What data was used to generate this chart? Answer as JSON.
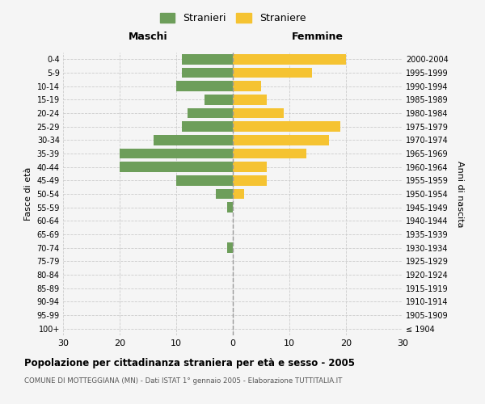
{
  "age_groups": [
    "100+",
    "95-99",
    "90-94",
    "85-89",
    "80-84",
    "75-79",
    "70-74",
    "65-69",
    "60-64",
    "55-59",
    "50-54",
    "45-49",
    "40-44",
    "35-39",
    "30-34",
    "25-29",
    "20-24",
    "15-19",
    "10-14",
    "5-9",
    "0-4"
  ],
  "birth_years": [
    "≤ 1904",
    "1905-1909",
    "1910-1914",
    "1915-1919",
    "1920-1924",
    "1925-1929",
    "1930-1934",
    "1935-1939",
    "1940-1944",
    "1945-1949",
    "1950-1954",
    "1955-1959",
    "1960-1964",
    "1965-1969",
    "1970-1974",
    "1975-1979",
    "1980-1984",
    "1985-1989",
    "1990-1994",
    "1995-1999",
    "2000-2004"
  ],
  "maschi": [
    0,
    0,
    0,
    0,
    0,
    0,
    1,
    0,
    0,
    1,
    3,
    10,
    20,
    20,
    14,
    9,
    8,
    5,
    10,
    9,
    9
  ],
  "femmine": [
    0,
    0,
    0,
    0,
    0,
    0,
    0,
    0,
    0,
    0,
    2,
    6,
    6,
    13,
    17,
    19,
    9,
    6,
    5,
    14,
    20
  ],
  "color_maschi": "#6d9e5a",
  "color_femmine": "#f5c332",
  "title": "Popolazione per cittadinanza straniera per età e sesso - 2005",
  "subtitle": "COMUNE DI MOTTEGGIANA (MN) - Dati ISTAT 1° gennaio 2005 - Elaborazione TUTTITALIA.IT",
  "xlabel_left": "Maschi",
  "xlabel_right": "Femmine",
  "ylabel_left": "Fasce di età",
  "ylabel_right": "Anni di nascita",
  "legend_maschi": "Stranieri",
  "legend_femmine": "Straniere",
  "xlim": 30,
  "background_color": "#f5f5f5",
  "grid_color": "#cccccc"
}
